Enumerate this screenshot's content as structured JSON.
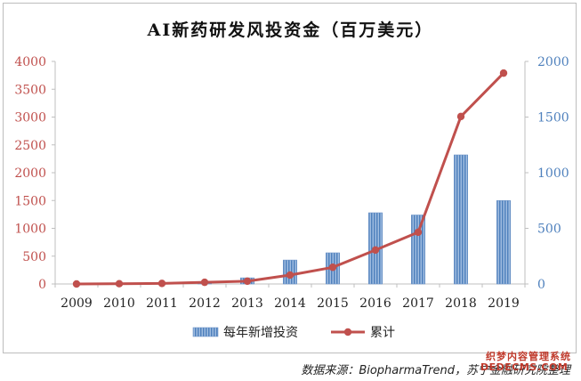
{
  "chart_data": {
    "type": "bar+line",
    "title": "AI新药研发风投资金（百万美元）",
    "categories": [
      "2009",
      "2010",
      "2011",
      "2012",
      "2013",
      "2014",
      "2015",
      "2016",
      "2017",
      "2018",
      "2019"
    ],
    "series": [
      {
        "name": "每年新增投资",
        "type": "bar",
        "axis": "right",
        "color": "#4f81bd",
        "values": [
          0,
          2,
          3,
          5,
          55,
          215,
          280,
          640,
          620,
          1160,
          750
        ]
      },
      {
        "name": "累计",
        "type": "line",
        "axis": "left",
        "color": "#c0504d",
        "values": [
          0,
          5,
          10,
          30,
          50,
          160,
          300,
          610,
          930,
          3010,
          3790
        ]
      }
    ],
    "y_left": {
      "min": 0,
      "max": 4000,
      "step": 500,
      "ticks": [
        "0",
        "500",
        "1000",
        "1500",
        "2000",
        "2500",
        "3000",
        "3500",
        "4000"
      ],
      "color": "#c0504d"
    },
    "y_right": {
      "min": 0,
      "max": 2000,
      "step": 500,
      "ticks": [
        "0",
        "500",
        "1000",
        "1500",
        "2000"
      ],
      "color": "#4f81bd"
    },
    "grid": false,
    "legend": "bottom-center"
  },
  "source": "数据来源：BiopharmaTrend，苏宁金融研究院整理",
  "watermark": {
    "line1": "织梦内容管理系统",
    "line2": "DEDECMS.COM"
  }
}
